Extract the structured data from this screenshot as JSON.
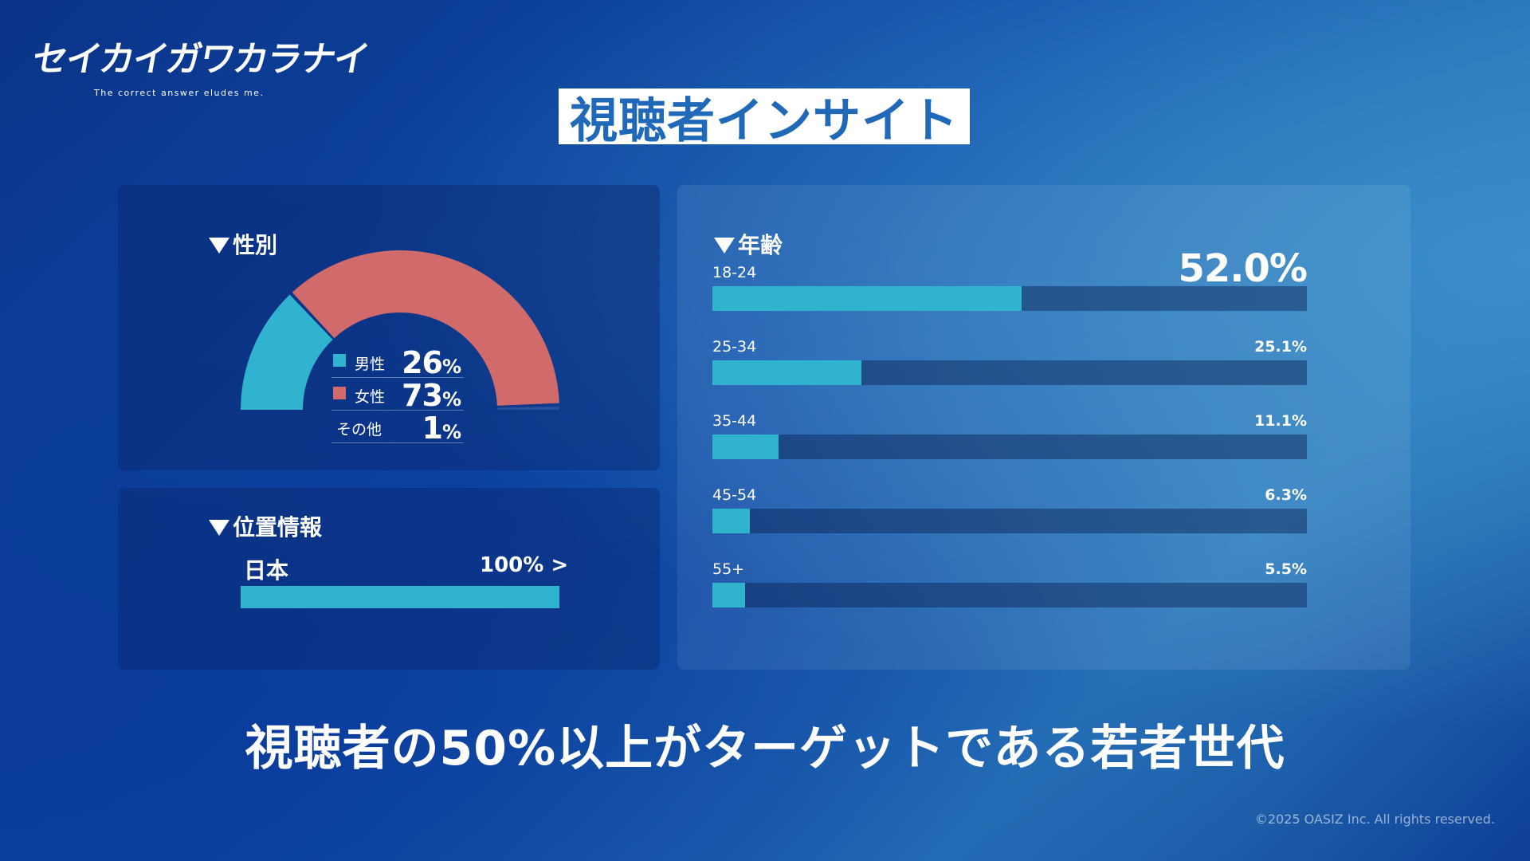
{
  "logo": {
    "main": "セイカイガワカラナイ",
    "sub": "The correct answer eludes me."
  },
  "title": "視聴者インサイト",
  "gender": {
    "heading": "性別",
    "items": [
      {
        "label": "男性",
        "value": "26",
        "unit": "%",
        "color": "#2fb3cf"
      },
      {
        "label": "女性",
        "value": "73",
        "unit": "%",
        "color": "#d16a6a"
      },
      {
        "label": "その他",
        "value": "1",
        "unit": "%"
      }
    ]
  },
  "location": {
    "heading": "位置情報",
    "name": "日本",
    "value_label": "100% >",
    "value": 100
  },
  "age": {
    "heading": "年齢"
  },
  "chart_data": [
    {
      "type": "pie",
      "title": "性別",
      "labels": [
        "男性",
        "女性",
        "その他"
      ],
      "values": [
        26,
        73,
        1
      ],
      "colors": [
        "#2fb3cf",
        "#d16a6a",
        "#2a4f9a"
      ]
    },
    {
      "type": "bar",
      "title": "年齢",
      "categories": [
        "18-24",
        "25-34",
        "35-44",
        "45-54",
        "55+"
      ],
      "values": [
        52.0,
        25.1,
        11.1,
        6.3,
        5.5
      ],
      "value_labels": [
        "52.0%",
        "25.1%",
        "11.1%",
        "6.3%",
        "5.5%"
      ],
      "orientation": "horizontal",
      "xlim": [
        0,
        100
      ]
    }
  ],
  "conclusion": "視聴者の50%以上がターゲットである若者世代",
  "copyright": "©2025 OASIZ Inc. All rights reserved."
}
